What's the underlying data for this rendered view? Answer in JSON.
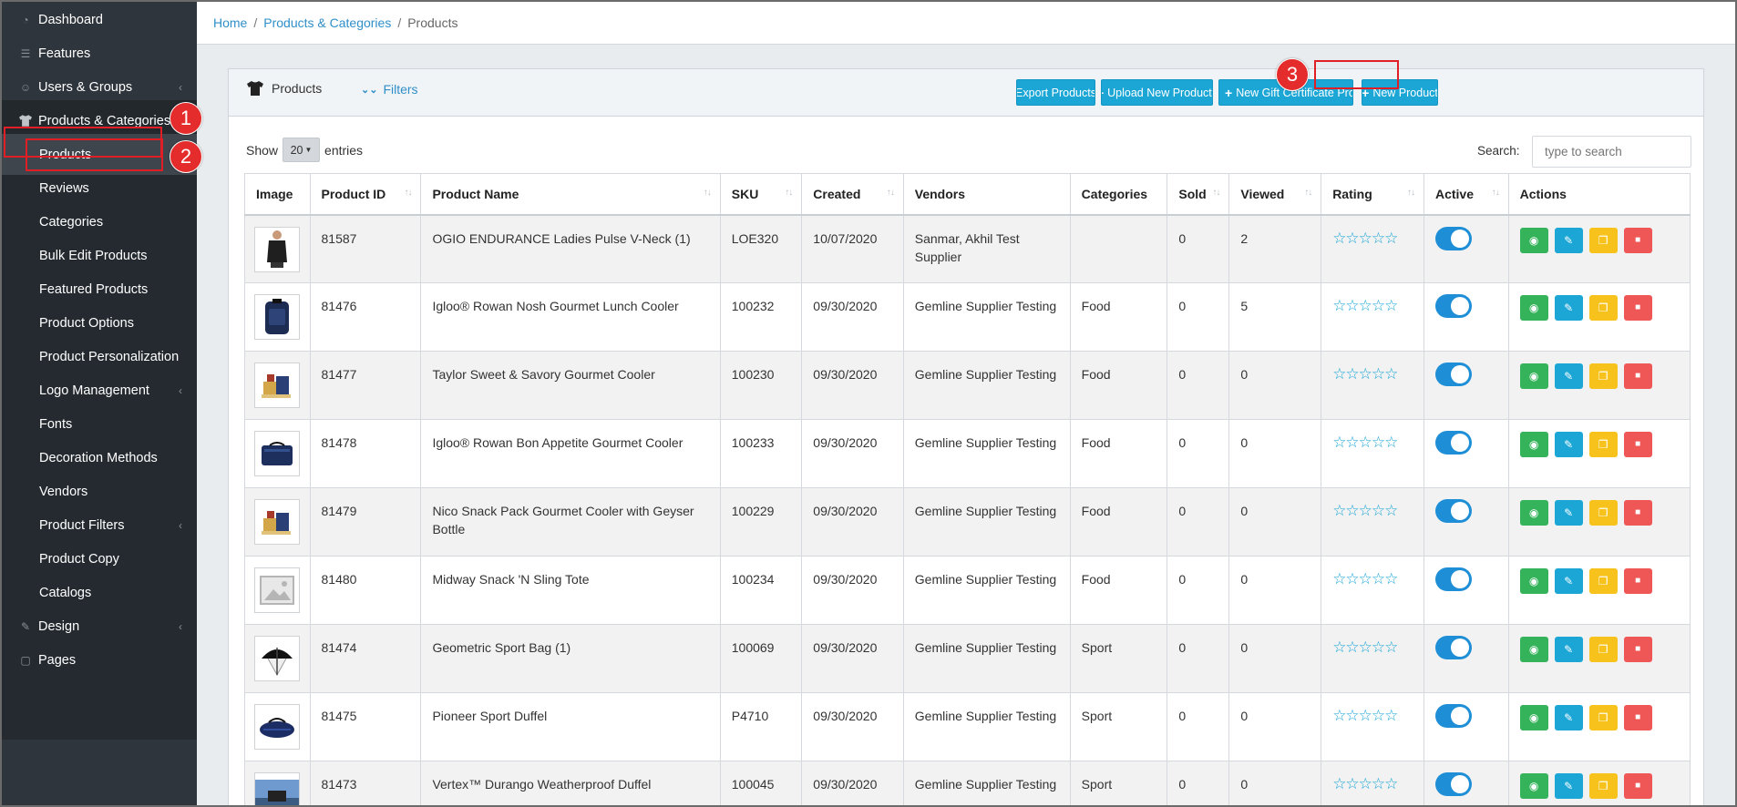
{
  "sidebar": {
    "items": [
      {
        "label": "Dashboard",
        "icon": "gauge-icon",
        "chevron": false
      },
      {
        "label": "Features",
        "icon": "list-icon",
        "chevron": false
      },
      {
        "label": "Users & Groups",
        "icon": "users-icon",
        "chevron": true
      },
      {
        "label": "Products & Categories",
        "icon": "tshirt-icon",
        "chevron": true
      },
      {
        "label": "Products",
        "sub": true
      },
      {
        "label": "Reviews",
        "sub": true
      },
      {
        "label": "Categories",
        "sub": true
      },
      {
        "label": "Bulk Edit Products",
        "sub": true
      },
      {
        "label": "Featured Products",
        "sub": true
      },
      {
        "label": "Product Options",
        "sub": true
      },
      {
        "label": "Product Personalization",
        "sub": true
      },
      {
        "label": "Logo Management",
        "sub": true,
        "chevron": true
      },
      {
        "label": "Fonts",
        "sub": true
      },
      {
        "label": "Decoration Methods",
        "sub": true
      },
      {
        "label": "Vendors",
        "sub": true
      },
      {
        "label": "Product Filters",
        "sub": true,
        "chevron": true
      },
      {
        "label": "Product Copy",
        "sub": true
      },
      {
        "label": "Catalogs",
        "sub": true
      },
      {
        "label": "Design",
        "icon": "pencil-icon",
        "chevron": true
      },
      {
        "label": "Pages",
        "icon": "file-icon",
        "chevron": false
      }
    ]
  },
  "breadcrumb": {
    "home": "Home",
    "section": "Products & Categories",
    "current": "Products",
    "separator": "/"
  },
  "card": {
    "title": "Products",
    "filters_label": "Filters",
    "buttons": {
      "export": "Export Products",
      "upload": "Upload New Products",
      "gift": "New Gift Certificate Product",
      "new": "New Product"
    }
  },
  "table_controls": {
    "show_label": "Show",
    "entries_value": "20",
    "entries_label": "entries",
    "search_label": "Search:",
    "search_placeholder": "type to search"
  },
  "table": {
    "columns": [
      "Image",
      "Product ID",
      "Product Name",
      "SKU",
      "Created",
      "Vendors",
      "Categories",
      "Sold",
      "Viewed",
      "Rating",
      "Active",
      "Actions"
    ],
    "rows": [
      {
        "id": "81587",
        "name": "OGIO ENDURANCE Ladies Pulse V-Neck (1)",
        "sku": "LOE320",
        "created": "10/07/2020",
        "vendors": "Sanmar, Akhil Test Supplier",
        "categories": "",
        "sold": "0",
        "viewed": "2",
        "thumb": "shirt"
      },
      {
        "id": "81476",
        "name": "Igloo® Rowan Nosh Gourmet Lunch Cooler",
        "sku": "100232",
        "created": "09/30/2020",
        "vendors": "Gemline Supplier Testing",
        "categories": "Food",
        "sold": "0",
        "viewed": "5",
        "thumb": "cooler"
      },
      {
        "id": "81477",
        "name": "Taylor Sweet & Savory Gourmet Cooler",
        "sku": "100230",
        "created": "09/30/2020",
        "vendors": "Gemline Supplier Testing",
        "categories": "Food",
        "sold": "0",
        "viewed": "0",
        "thumb": "basket"
      },
      {
        "id": "81478",
        "name": "Igloo® Rowan Bon Appetite Gourmet Cooler",
        "sku": "100233",
        "created": "09/30/2020",
        "vendors": "Gemline Supplier Testing",
        "categories": "Food",
        "sold": "0",
        "viewed": "0",
        "thumb": "bag"
      },
      {
        "id": "81479",
        "name": "Nico Snack Pack Gourmet Cooler with Geyser Bottle",
        "sku": "100229",
        "created": "09/30/2020",
        "vendors": "Gemline Supplier Testing",
        "categories": "Food",
        "sold": "0",
        "viewed": "0",
        "thumb": "basket"
      },
      {
        "id": "81480",
        "name": "Midway Snack 'N Sling Tote",
        "sku": "100234",
        "created": "09/30/2020",
        "vendors": "Gemline Supplier Testing",
        "categories": "Food",
        "sold": "0",
        "viewed": "0",
        "thumb": "placeholder"
      },
      {
        "id": "81474",
        "name": "Geometric Sport Bag (1)",
        "sku": "100069",
        "created": "09/30/2020",
        "vendors": "Gemline Supplier Testing",
        "categories": "Sport",
        "sold": "0",
        "viewed": "0",
        "thumb": "umbrella"
      },
      {
        "id": "81475",
        "name": "Pioneer Sport Duffel",
        "sku": "P4710",
        "created": "09/30/2020",
        "vendors": "Gemline Supplier Testing",
        "categories": "Sport",
        "sold": "0",
        "viewed": "0",
        "thumb": "duffel"
      },
      {
        "id": "81473",
        "name": "Vertex™ Durango Weatherproof Duffel",
        "sku": "100045",
        "created": "09/30/2020",
        "vendors": "Gemline Supplier Testing",
        "categories": "Sport",
        "sold": "0",
        "viewed": "0",
        "thumb": "scene"
      }
    ],
    "rating_stars": "☆☆☆☆☆"
  },
  "annotations": {
    "step1": "1",
    "step2": "2",
    "step3": "3"
  },
  "colors": {
    "sidebar_bg": "#2f353c",
    "accent": "#1ba6d6",
    "link": "#2f8fc9",
    "annotation_red": "#e01e25"
  }
}
